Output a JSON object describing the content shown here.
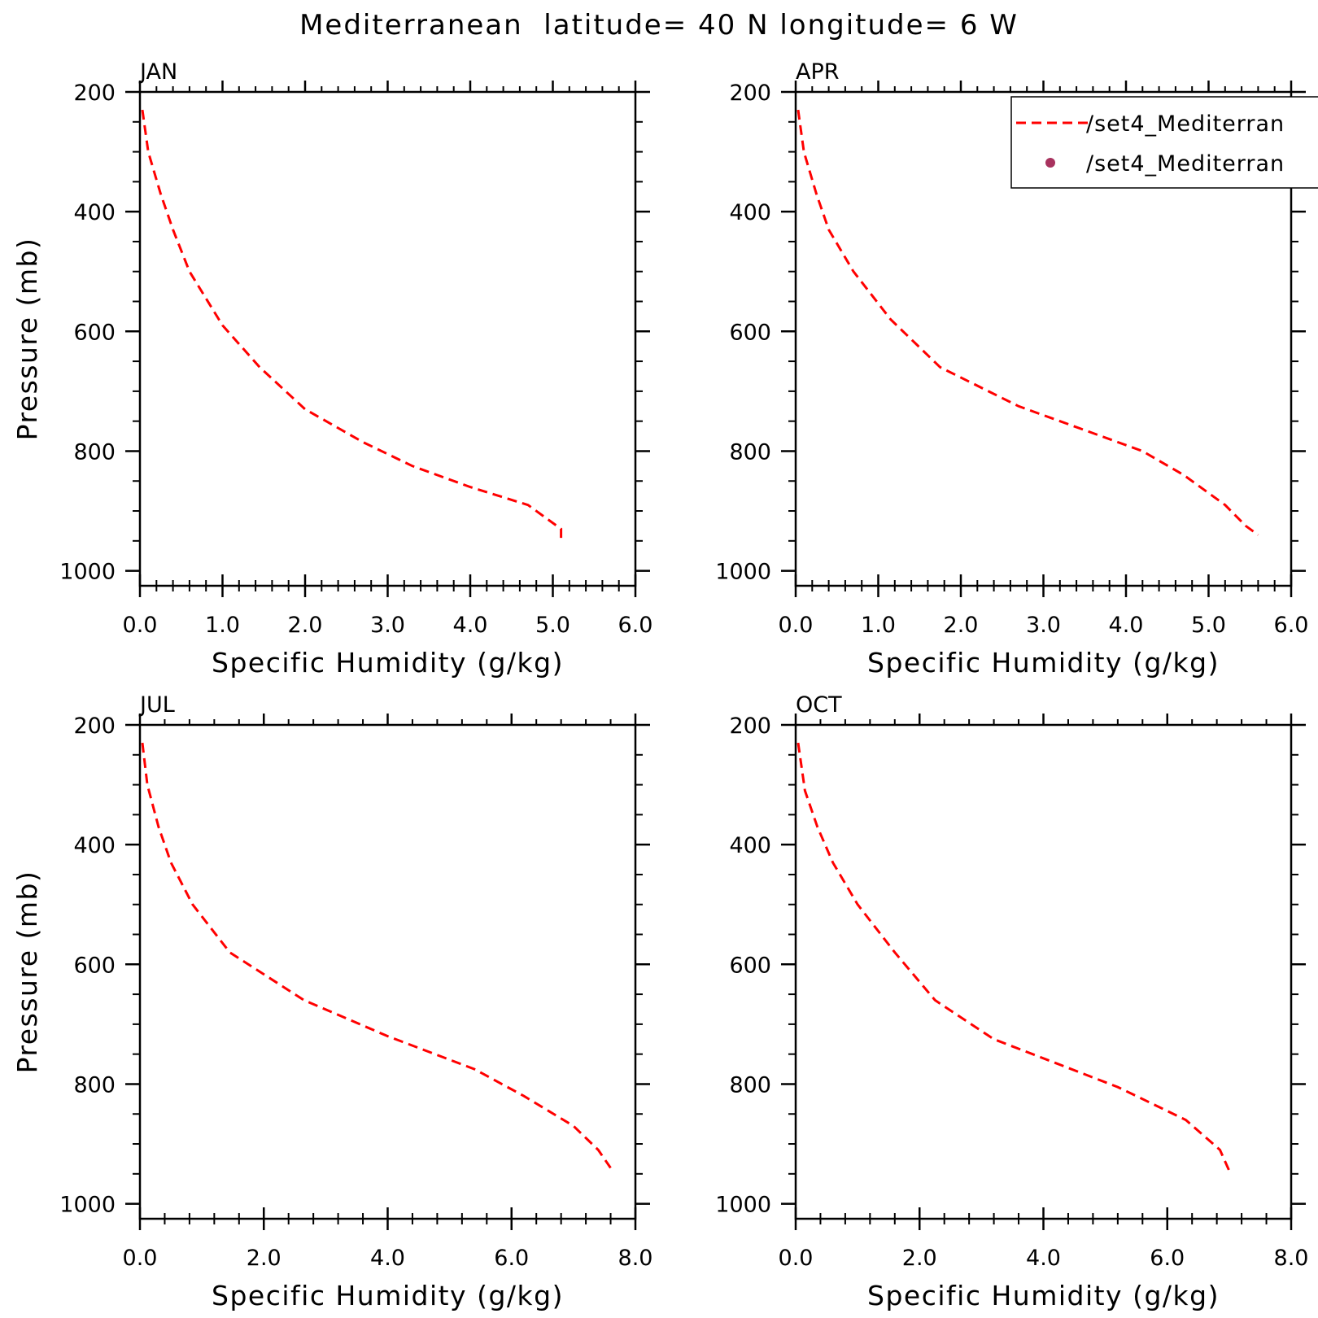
{
  "figure": {
    "title": "Mediterranean  latitude= 40 N longitude= 6 W"
  },
  "legend": {
    "entries": [
      {
        "label": "/set4_Mediterran",
        "style": "dashed-line",
        "color": "#ff0000"
      },
      {
        "label": "/set4_Mediterran",
        "style": "dot",
        "color": "#a8325e"
      }
    ]
  },
  "colors": {
    "line": "#ff0000",
    "marker": "#a8325e",
    "axis": "#000000"
  },
  "chart_data": [
    {
      "type": "line",
      "title": "JAN",
      "xlabel": "Specific Humidity (g/kg)",
      "ylabel": "Pressure (mb)",
      "xlim": [
        0,
        6
      ],
      "ylim": [
        200,
        1025
      ],
      "y_inverted": true,
      "xticks": [
        0,
        1,
        2,
        3,
        4,
        5,
        6
      ],
      "xtick_labels": [
        "0.0",
        "1.0",
        "2.0",
        "3.0",
        "4.0",
        "5.0",
        "6.0"
      ],
      "yticks": [
        200,
        400,
        600,
        800,
        1000
      ],
      "ytick_labels": [
        "200",
        "400",
        "600",
        "800",
        "1000"
      ],
      "grid": false,
      "series": [
        {
          "x": [
            0.03,
            0.1,
            0.25,
            0.4,
            0.6,
            1.0,
            1.45,
            2.0,
            2.7,
            3.3,
            4.0,
            4.7,
            4.95,
            5.1,
            5.1
          ],
          "y": [
            230,
            300,
            370,
            430,
            500,
            590,
            660,
            730,
            785,
            825,
            860,
            890,
            915,
            930,
            945
          ]
        }
      ]
    },
    {
      "type": "line",
      "title": "APR",
      "xlabel": "Specific Humidity (g/kg)",
      "ylabel": "",
      "xlim": [
        0,
        6
      ],
      "ylim": [
        200,
        1025
      ],
      "y_inverted": true,
      "xticks": [
        0,
        1,
        2,
        3,
        4,
        5,
        6
      ],
      "xtick_labels": [
        "0.0",
        "1.0",
        "2.0",
        "3.0",
        "4.0",
        "5.0",
        "6.0"
      ],
      "yticks": [
        200,
        400,
        600,
        800,
        1000
      ],
      "ytick_labels": [
        "200",
        "400",
        "600",
        "800",
        "1000"
      ],
      "grid": false,
      "legend_placement": "top-right",
      "series": [
        {
          "x": [
            0.03,
            0.1,
            0.25,
            0.4,
            0.7,
            1.15,
            1.75,
            2.7,
            3.5,
            4.2,
            4.7,
            5.2,
            5.45,
            5.6
          ],
          "y": [
            230,
            300,
            370,
            430,
            500,
            580,
            660,
            725,
            765,
            800,
            840,
            890,
            925,
            940
          ]
        }
      ]
    },
    {
      "type": "line",
      "title": "JUL",
      "xlabel": "Specific Humidity (g/kg)",
      "ylabel": "Pressure (mb)",
      "xlim": [
        0,
        8
      ],
      "ylim": [
        200,
        1025
      ],
      "y_inverted": true,
      "xticks": [
        0,
        2,
        4,
        6,
        8
      ],
      "xtick_labels": [
        "0.0",
        "2.0",
        "4.0",
        "6.0",
        "8.0"
      ],
      "yticks": [
        200,
        400,
        600,
        800,
        1000
      ],
      "ytick_labels": [
        "200",
        "400",
        "600",
        "800",
        "1000"
      ],
      "grid": false,
      "series": [
        {
          "x": [
            0.04,
            0.12,
            0.3,
            0.5,
            0.85,
            1.45,
            2.65,
            4.0,
            5.4,
            6.2,
            7.0,
            7.4,
            7.6
          ],
          "y": [
            230,
            300,
            370,
            430,
            500,
            580,
            660,
            720,
            775,
            820,
            870,
            910,
            940
          ]
        }
      ]
    },
    {
      "type": "line",
      "title": "OCT",
      "xlabel": "Specific Humidity (g/kg)",
      "ylabel": "",
      "xlim": [
        0,
        8
      ],
      "ylim": [
        200,
        1025
      ],
      "y_inverted": true,
      "xticks": [
        0,
        2,
        4,
        6,
        8
      ],
      "xtick_labels": [
        "0.0",
        "2.0",
        "4.0",
        "6.0",
        "8.0"
      ],
      "yticks": [
        200,
        400,
        600,
        800,
        1000
      ],
      "ytick_labels": [
        "200",
        "400",
        "600",
        "800",
        "1000"
      ],
      "grid": false,
      "series": [
        {
          "x": [
            0.04,
            0.15,
            0.35,
            0.6,
            1.0,
            1.6,
            2.25,
            3.2,
            4.2,
            5.2,
            6.3,
            6.85,
            7.0
          ],
          "y": [
            230,
            310,
            370,
            430,
            500,
            580,
            660,
            725,
            765,
            805,
            860,
            910,
            945
          ]
        }
      ]
    }
  ]
}
